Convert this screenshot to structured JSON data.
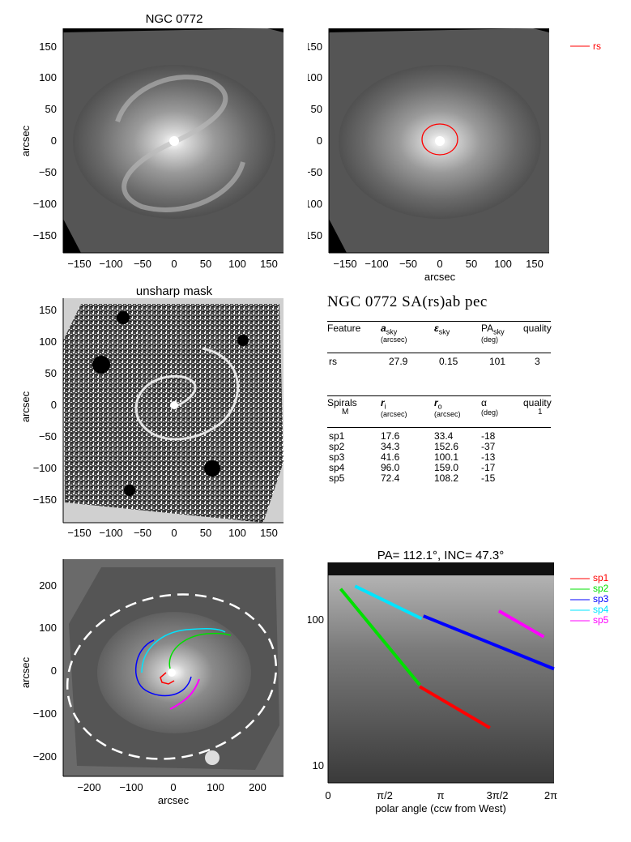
{
  "panel1": {
    "title": "NGC 0772",
    "ylabel": "arcsec",
    "xticks": [
      "−150",
      "−100",
      "−50",
      "0",
      "50",
      "100",
      "150"
    ],
    "yticks": [
      "150",
      "100",
      "50",
      "0",
      "−50",
      "−100",
      "−150"
    ]
  },
  "panel2": {
    "xlabel": "arcsec",
    "xticks": [
      "−150",
      "−100",
      "−50",
      "0",
      "50",
      "100",
      "150"
    ],
    "yticks": [
      "150",
      "100",
      "50",
      "0",
      "−50",
      "−100",
      "−150"
    ],
    "legend": [
      {
        "label": "rs",
        "color": "#ff0000"
      }
    ]
  },
  "panel3": {
    "title": "unsharp mask",
    "ylabel": "arcsec",
    "xticks": [
      "−150",
      "−100",
      "−50",
      "0",
      "50",
      "100",
      "150"
    ],
    "yticks": [
      "150",
      "100",
      "50",
      "0",
      "−50",
      "−100",
      "−150"
    ]
  },
  "table": {
    "title": "NGC 0772  SA(rs)ab pec",
    "features_header": {
      "c1": "Feature",
      "c2": "a",
      "c2_sub": "sky",
      "c2_unit": "(arcsec)",
      "c3": "ε",
      "c3_sub": "sky",
      "c4": "PA",
      "c4_sub": "sky",
      "c4_unit": "(deg)",
      "c5": "quality"
    },
    "features": [
      {
        "name": "rs",
        "a": "27.9",
        "e": "0.15",
        "pa": "101",
        "q": "3"
      }
    ],
    "spirals_header": {
      "c1": "Spirals",
      "c1_sub": "M",
      "c2": "r",
      "c2_sub": "i",
      "c2_unit": "(arcsec)",
      "c3": "r",
      "c3_sub": "o",
      "c3_unit": "(arcsec)",
      "c4": "α",
      "c4_unit": "(deg)",
      "c5": "quality",
      "c5_sub": "1"
    },
    "spirals": [
      {
        "name": "sp1",
        "ri": "17.6",
        "ro": "33.4",
        "alpha": "-18"
      },
      {
        "name": "sp2",
        "ri": "34.3",
        "ro": "152.6",
        "alpha": "-37"
      },
      {
        "name": "sp3",
        "ri": "41.6",
        "ro": "100.1",
        "alpha": "-13"
      },
      {
        "name": "sp4",
        "ri": "96.0",
        "ro": "159.0",
        "alpha": "-17"
      },
      {
        "name": "sp5",
        "ri": "72.4",
        "ro": "108.2",
        "alpha": "-15"
      }
    ]
  },
  "panel5": {
    "xlabel": "arcsec",
    "ylabel": "arcsec",
    "xticks": [
      "−200",
      "−100",
      "0",
      "100",
      "200"
    ],
    "yticks": [
      "200",
      "100",
      "0",
      "−100",
      "−200"
    ]
  },
  "panel6": {
    "title": "PA= 112.1°, INC=  47.3°",
    "xlabel": "polar angle (ccw from West)",
    "xticks": [
      "0",
      "π/2",
      "π",
      "3π/2",
      "2π"
    ],
    "yticks": [
      "100",
      "10"
    ],
    "legend": [
      {
        "label": "sp1",
        "color": "#ff0000"
      },
      {
        "label": "sp2",
        "color": "#00e000"
      },
      {
        "label": "sp3",
        "color": "#0000ff"
      },
      {
        "label": "sp4",
        "color": "#00e5ff"
      },
      {
        "label": "sp5",
        "color": "#ff00ff"
      }
    ]
  },
  "chart_data": [
    {
      "type": "scatter",
      "panel": "log-polar spiral fit",
      "title": "PA= 112.1°, INC=  47.3°",
      "xlabel": "polar angle (ccw from West)",
      "ylabel": "",
      "xlim": [
        0,
        6.2832
      ],
      "ylim": [
        7.5,
        230
      ],
      "yscale": "log",
      "series": [
        {
          "name": "sp1",
          "x": [
            2.55,
            4.5
          ],
          "y": [
            33.4,
            17.6
          ]
        },
        {
          "name": "sp2",
          "x": [
            0.35,
            2.55
          ],
          "y": [
            152.6,
            34.3
          ]
        },
        {
          "name": "sp3",
          "x": [
            2.65,
            6.28
          ],
          "y": [
            100.1,
            44.0
          ]
        },
        {
          "name": "sp4",
          "x": [
            0.75,
            2.6
          ],
          "y": [
            159.0,
            96.0
          ]
        },
        {
          "name": "sp5",
          "x": [
            4.75,
            6.0
          ],
          "y": [
            108.2,
            72.4
          ]
        }
      ]
    }
  ]
}
